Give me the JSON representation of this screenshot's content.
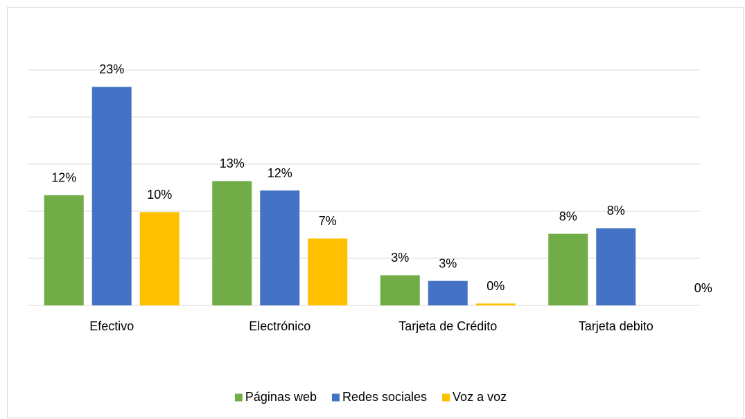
{
  "chart_data": {
    "type": "bar",
    "categories": [
      "Efectivo",
      "Electrónico",
      "Tarjeta de Crédito",
      "Tarjeta debito"
    ],
    "series": [
      {
        "name": "Páginas web",
        "color": "#70ad47",
        "values": [
          11.7,
          13.2,
          3.2,
          7.6
        ],
        "value_labels": [
          "12%",
          "13%",
          "3%",
          "8%"
        ]
      },
      {
        "name": "Redes sociales",
        "color": "#4472c4",
        "values": [
          23.2,
          12.2,
          2.6,
          8.2
        ],
        "value_labels": [
          "23%",
          "12%",
          "3%",
          "8%"
        ]
      },
      {
        "name": "Voz a voz",
        "color": "#ffc000",
        "values": [
          9.9,
          7.1,
          0.2,
          0
        ],
        "value_labels": [
          "10%",
          "7%",
          "0%",
          "0%"
        ]
      }
    ],
    "ylim": [
      0,
      25
    ],
    "yticks": [
      0,
      5,
      10,
      15,
      20,
      25
    ],
    "grid": true,
    "legend": "bottom"
  }
}
